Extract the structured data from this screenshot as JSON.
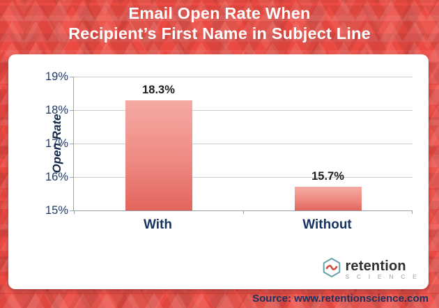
{
  "title": {
    "line1": "Email Open Rate When",
    "line2": "Recipient’s First Name in Subject Line"
  },
  "chart_data": {
    "type": "bar",
    "title": "Email Open Rate When Recipient’s First Name in Subject Line",
    "categories": [
      "With",
      "Without"
    ],
    "values": [
      18.3,
      15.7
    ],
    "value_labels": [
      "18.3%",
      "15.7%"
    ],
    "xlabel": "",
    "ylabel": "Open Rate",
    "ylim": [
      15,
      19
    ],
    "ytick_step": 1,
    "yticks": [
      "19%",
      "18%",
      "17%",
      "16%",
      "15%"
    ],
    "grid": true,
    "legend": false,
    "bar_gradient_top": "#f5aaa4",
    "bar_gradient_bottom": "#e1655c"
  },
  "branding": {
    "logo_name": "retention",
    "logo_sub": "S C I E N C E"
  },
  "source": "Source: www.retentionscience.com",
  "colors": {
    "background_red": "#eb4a42",
    "panel": "#ffffff",
    "title_text": "#ffffff",
    "axis_text": "#1e3a66",
    "category_text": "#17335f",
    "data_label_text": "#1b1b1b",
    "source_text": "#1c3260",
    "logo_wave_red": "#d7473c",
    "logo_hexagon_teal": "#62a3a7"
  }
}
